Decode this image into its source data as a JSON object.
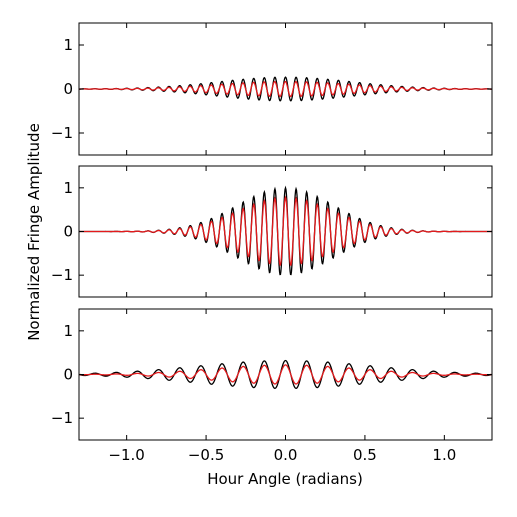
{
  "figure": {
    "ylabel": "Normalized Fringe Amplitude",
    "xlabel": "Hour Angle (radians)"
  },
  "chart_data": [
    {
      "type": "line",
      "panel": "top",
      "xlim": [
        -1.3,
        1.3
      ],
      "ylim": [
        -1.5,
        1.5
      ],
      "xticks": [
        -1.0,
        -0.5,
        0.0,
        0.5,
        1.0
      ],
      "xtick_labels": [
        "",
        "",
        "",
        "",
        ""
      ],
      "yticks": [
        -1,
        0,
        1
      ],
      "ytick_labels": [
        "−1",
        "0",
        "1"
      ],
      "grid": false,
      "series": [
        {
          "color": "#000000",
          "amplitude": 0.27,
          "envelope_sigma": 0.42,
          "fringe_frequency_cycles_per_radian": 15.0,
          "phase": 0.0
        },
        {
          "color": "#e41a1c",
          "amplitude": 0.17,
          "envelope_sigma": 0.42,
          "fringe_frequency_cycles_per_radian": 15.0,
          "phase": 0.12
        }
      ]
    },
    {
      "type": "line",
      "panel": "middle",
      "xlim": [
        -1.3,
        1.3
      ],
      "ylim": [
        -1.5,
        1.5
      ],
      "xticks": [
        -1.0,
        -0.5,
        0.0,
        0.5,
        1.0
      ],
      "xtick_labels": [
        "",
        "",
        "",
        "",
        ""
      ],
      "yticks": [
        -1,
        0,
        1
      ],
      "ytick_labels": [
        "−1",
        "0",
        "1"
      ],
      "grid": false,
      "series": [
        {
          "color": "#000000",
          "amplitude": 1.0,
          "envelope_sigma": 0.3,
          "fringe_frequency_cycles_per_radian": 15.0,
          "phase": 0.0
        },
        {
          "color": "#e41a1c",
          "amplitude": 0.78,
          "envelope_sigma": 0.3,
          "fringe_frequency_cycles_per_radian": 15.0,
          "phase": 0.0
        }
      ]
    },
    {
      "type": "line",
      "panel": "bottom",
      "xlim": [
        -1.3,
        1.3
      ],
      "ylim": [
        -1.5,
        1.5
      ],
      "xticks": [
        -1.0,
        -0.5,
        0.0,
        0.5,
        1.0
      ],
      "xtick_labels": [
        "−1.0",
        "−0.5",
        "0.0",
        "0.5",
        "1.0"
      ],
      "yticks": [
        -1,
        0,
        1
      ],
      "ytick_labels": [
        "−1",
        "0",
        "1"
      ],
      "grid": false,
      "series": [
        {
          "color": "#000000",
          "amplitude": 0.32,
          "envelope_sigma": 0.55,
          "fringe_frequency_cycles_per_radian": 7.5,
          "phase": 0.0
        },
        {
          "color": "#e41a1c",
          "amplitude": 0.22,
          "envelope_sigma": 0.45,
          "fringe_frequency_cycles_per_radian": 7.5,
          "phase": 0.0
        }
      ]
    }
  ]
}
